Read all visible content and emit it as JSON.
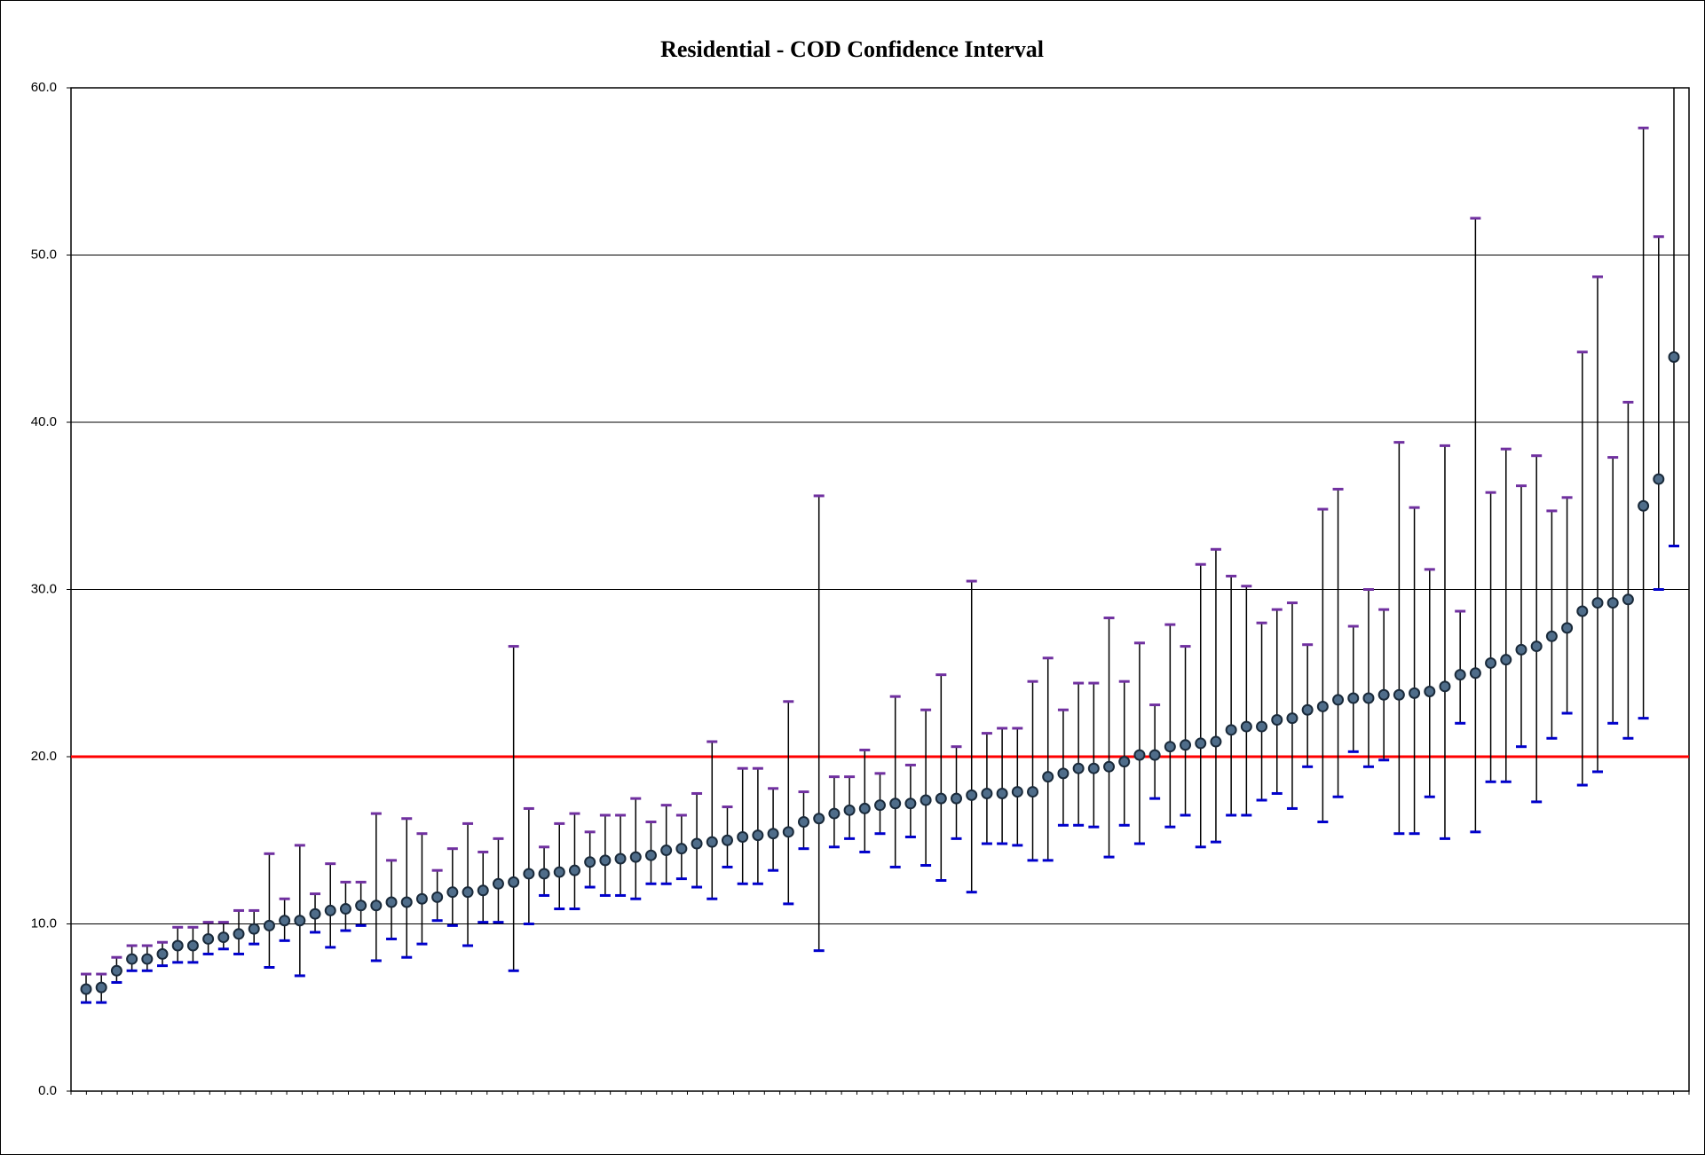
{
  "chart_data": {
    "type": "errorbar",
    "title": "Residential  - COD Confidence Interval",
    "categories": [
      null,
      null,
      null,
      null,
      null,
      null,
      null,
      null,
      null,
      null,
      null,
      null,
      null,
      null,
      null,
      null,
      null,
      null,
      null,
      null,
      null,
      null,
      null,
      null,
      null,
      null,
      null,
      null,
      null,
      null,
      null,
      null,
      null,
      null,
      null,
      null,
      null,
      null,
      null,
      null,
      null,
      null,
      null,
      null,
      null,
      null,
      null,
      null,
      null,
      null,
      null,
      null,
      null,
      null,
      null,
      null,
      null,
      null,
      null,
      null,
      null,
      null,
      null,
      null,
      null,
      null,
      null,
      null,
      null,
      null,
      null,
      null,
      null,
      null,
      null,
      null,
      null,
      null,
      null,
      null,
      null,
      null,
      null,
      null,
      null,
      null,
      null,
      null,
      null,
      null,
      null,
      null,
      null,
      null,
      null,
      null,
      null,
      null,
      null,
      null,
      null,
      null,
      null,
      null,
      null
    ],
    "values": [
      6.1,
      6.2,
      7.2,
      7.9,
      7.9,
      8.2,
      8.7,
      8.7,
      9.1,
      9.2,
      9.4,
      9.7,
      9.9,
      10.2,
      10.2,
      10.6,
      10.8,
      10.9,
      11.1,
      11.1,
      11.3,
      11.3,
      11.5,
      11.6,
      11.9,
      11.9,
      12.0,
      12.4,
      12.5,
      13.0,
      13.0,
      13.1,
      13.2,
      13.7,
      13.8,
      13.9,
      14.0,
      14.1,
      14.4,
      14.5,
      14.8,
      14.9,
      15.0,
      15.2,
      15.3,
      15.4,
      15.5,
      16.1,
      16.3,
      16.6,
      16.8,
      16.9,
      17.1,
      17.2,
      17.2,
      17.4,
      17.5,
      17.5,
      17.7,
      17.8,
      17.8,
      17.9,
      17.9,
      18.8,
      19.0,
      19.3,
      19.3,
      19.4,
      19.7,
      20.1,
      20.1,
      20.6,
      20.7,
      20.8,
      20.9,
      21.6,
      21.8,
      21.8,
      22.2,
      22.3,
      22.8,
      23.0,
      23.4,
      23.5,
      23.5,
      23.7,
      23.7,
      23.8,
      23.9,
      24.2,
      24.9,
      25.0,
      25.6,
      25.8,
      26.4,
      26.6,
      27.2,
      27.7,
      28.7,
      29.2,
      29.2,
      29.4,
      35.0,
      36.6,
      43.9
    ],
    "lower": [
      5.3,
      5.3,
      6.5,
      7.2,
      7.2,
      7.5,
      7.7,
      7.7,
      8.2,
      8.5,
      8.2,
      8.8,
      7.4,
      9.0,
      6.9,
      9.5,
      8.6,
      9.6,
      9.9,
      7.8,
      9.1,
      8.0,
      8.8,
      10.2,
      9.9,
      8.7,
      10.1,
      10.1,
      7.2,
      10.0,
      11.7,
      10.9,
      10.9,
      12.2,
      11.7,
      11.7,
      11.5,
      12.4,
      12.4,
      12.7,
      12.2,
      11.5,
      13.4,
      12.4,
      12.4,
      13.2,
      11.2,
      14.5,
      8.4,
      14.6,
      15.1,
      14.3,
      15.4,
      13.4,
      15.2,
      13.5,
      12.6,
      15.1,
      11.9,
      14.8,
      14.8,
      14.7,
      13.8,
      13.8,
      15.9,
      15.9,
      15.8,
      14.0,
      15.9,
      14.8,
      17.5,
      15.8,
      16.5,
      14.6,
      14.9,
      16.5,
      16.5,
      17.4,
      17.8,
      16.9,
      19.4,
      16.1,
      17.6,
      20.3,
      19.4,
      19.8,
      15.4,
      15.4,
      17.6,
      15.1,
      22.0,
      15.5,
      18.5,
      18.5,
      20.6,
      17.3,
      21.1,
      22.6,
      18.3,
      19.1,
      22.0,
      21.1,
      22.3,
      30.0,
      32.6
    ],
    "upper": [
      7.0,
      7.0,
      8.0,
      8.7,
      8.7,
      8.9,
      9.8,
      9.8,
      10.1,
      10.1,
      10.8,
      10.8,
      14.2,
      11.5,
      14.7,
      11.8,
      13.6,
      12.5,
      12.5,
      16.6,
      13.8,
      16.3,
      15.4,
      13.2,
      14.5,
      16.0,
      14.3,
      15.1,
      26.6,
      16.9,
      14.6,
      16.0,
      16.6,
      15.5,
      16.5,
      16.5,
      17.5,
      16.1,
      17.1,
      16.5,
      17.8,
      20.9,
      17.0,
      19.3,
      19.3,
      18.1,
      23.3,
      17.9,
      35.6,
      18.8,
      18.8,
      20.4,
      19.0,
      23.6,
      19.5,
      22.8,
      24.9,
      20.6,
      30.5,
      21.4,
      21.7,
      21.7,
      24.5,
      25.9,
      22.8,
      24.4,
      24.4,
      28.3,
      24.5,
      26.8,
      23.1,
      27.9,
      26.6,
      31.5,
      32.4,
      30.8,
      30.2,
      28.0,
      28.8,
      29.2,
      26.7,
      34.8,
      36.0,
      27.8,
      30.0,
      28.8,
      38.8,
      34.9,
      31.2,
      38.6,
      28.7,
      52.2,
      35.8,
      38.4,
      36.2,
      38.0,
      34.7,
      35.5,
      44.2,
      48.7,
      37.9,
      41.2,
      57.6,
      51.1,
      65
    ],
    "color": "#4f6d8a",
    "upper_color": "#7030a0",
    "lower_color": "#0000cc",
    "reference_line": 20,
    "reference_color": "#ff0000",
    "ylim": [
      0,
      60
    ],
    "yticks": [
      {
        "value": 0,
        "label": "0.0"
      },
      {
        "value": 10,
        "label": "10.0"
      },
      {
        "value": 20,
        "label": "20.0"
      },
      {
        "value": 30,
        "label": "30.0"
      },
      {
        "value": 40,
        "label": "40.0"
      },
      {
        "value": 50,
        "label": "50.0"
      },
      {
        "value": 60,
        "label": "60.0"
      }
    ],
    "grid": true
  }
}
